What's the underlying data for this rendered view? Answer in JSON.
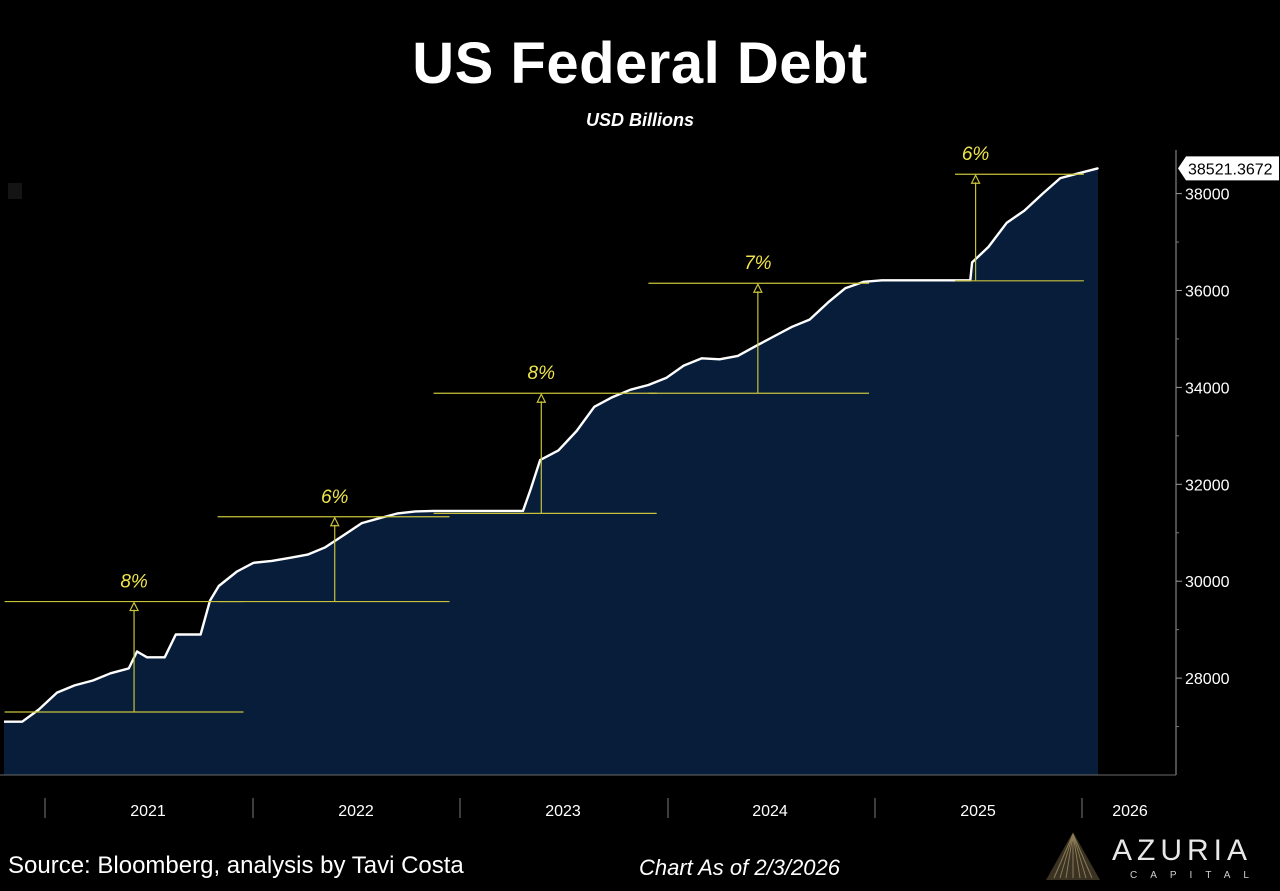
{
  "chart_data": {
    "type": "area",
    "title": "US Federal Debt",
    "subtitle": "USD Billions",
    "xlabel": "",
    "ylabel": "",
    "ylim": [
      26000,
      38900
    ],
    "yticks": [
      "28000",
      "30000",
      "32000",
      "34000",
      "36000",
      "38000"
    ],
    "xticks": [
      "2021",
      "2022",
      "2023",
      "2024",
      "2025",
      "2026"
    ],
    "last_value_label": "38521.3672",
    "grid": false,
    "colors": {
      "line": "#ffffff",
      "fill": "#071d3a",
      "annotation": "#c8c23a"
    },
    "series": [
      {
        "x": [
          "2021-02-01",
          "2021-03-01",
          "2021-04-01",
          "2021-05-01",
          "2021-06-01",
          "2021-07-01",
          "2021-08-01",
          "2021-08-15",
          "2021-09-01",
          "2021-10-01",
          "2021-10-20",
          "2021-11-01",
          "2021-12-01",
          "2021-12-17",
          "2022-01-01",
          "2022-02-01",
          "2022-03-01",
          "2022-04-01",
          "2022-05-01",
          "2022-06-01",
          "2022-07-01",
          "2022-08-01",
          "2022-09-01",
          "2022-10-01",
          "2022-11-01",
          "2022-12-01",
          "2023-01-01",
          "2023-02-01",
          "2023-03-01",
          "2023-04-01",
          "2023-05-01",
          "2023-06-02",
          "2023-06-15",
          "2023-07-01",
          "2023-08-01",
          "2023-09-01",
          "2023-10-01",
          "2023-11-01",
          "2023-12-01",
          "2024-01-01",
          "2024-02-01",
          "2024-03-01",
          "2024-04-01",
          "2024-05-01",
          "2024-06-01",
          "2024-07-01",
          "2024-08-01",
          "2024-09-01",
          "2024-10-01",
          "2024-11-01",
          "2024-12-01",
          "2025-01-01",
          "2025-02-01",
          "2025-03-01",
          "2025-04-01",
          "2025-05-01",
          "2025-06-01",
          "2025-07-01",
          "2025-07-04",
          "2025-08-01",
          "2025-09-01",
          "2025-10-01",
          "2025-11-01",
          "2025-12-01",
          "2026-01-01",
          "2026-02-03"
        ],
        "values": [
          27100,
          27350,
          27700,
          27850,
          27950,
          28100,
          28200,
          28550,
          28430,
          28430,
          28900,
          28900,
          28900,
          29600,
          29900,
          30200,
          30380,
          30420,
          30480,
          30550,
          30700,
          30950,
          31200,
          31300,
          31400,
          31440,
          31450,
          31450,
          31450,
          31450,
          31450,
          31450,
          31900,
          32500,
          32700,
          33100,
          33600,
          33800,
          33950,
          34050,
          34200,
          34450,
          34600,
          34580,
          34650,
          34850,
          35050,
          35250,
          35400,
          35750,
          36050,
          36180,
          36210,
          36210,
          36210,
          36210,
          36210,
          36210,
          36580,
          36900,
          37400,
          37650,
          38000,
          38320,
          38420,
          38521.3672
        ]
      }
    ],
    "annotations": [
      {
        "label": "8%",
        "from_date": "2021-01-02",
        "to_date": "2022-02-12",
        "base": 27300,
        "top": 29580,
        "x_date": "2021-08-10"
      },
      {
        "label": "6%",
        "from_date": "2021-12-30",
        "to_date": "2023-01-28",
        "base": 29580,
        "top": 31330,
        "x_date": "2022-07-17"
      },
      {
        "label": "8%",
        "from_date": "2023-01-01",
        "to_date": "2024-01-15",
        "base": 31400,
        "top": 33880,
        "x_date": "2023-07-03"
      },
      {
        "label": "7%",
        "from_date": "2024-01-01",
        "to_date": "2025-01-10",
        "base": 33880,
        "top": 36150,
        "x_date": "2024-07-05"
      },
      {
        "label": "6%",
        "from_date": "2025-06-05",
        "to_date": "2026-01-10",
        "base": 36200,
        "top": 38400,
        "x_date": "2025-07-10"
      }
    ]
  },
  "footer": {
    "source": "Source: Bloomberg, analysis by Tavi Costa",
    "as_of": "Chart As of 2/3/2026"
  },
  "logo": {
    "name": "AZURIA",
    "sub": "CAPITAL"
  }
}
